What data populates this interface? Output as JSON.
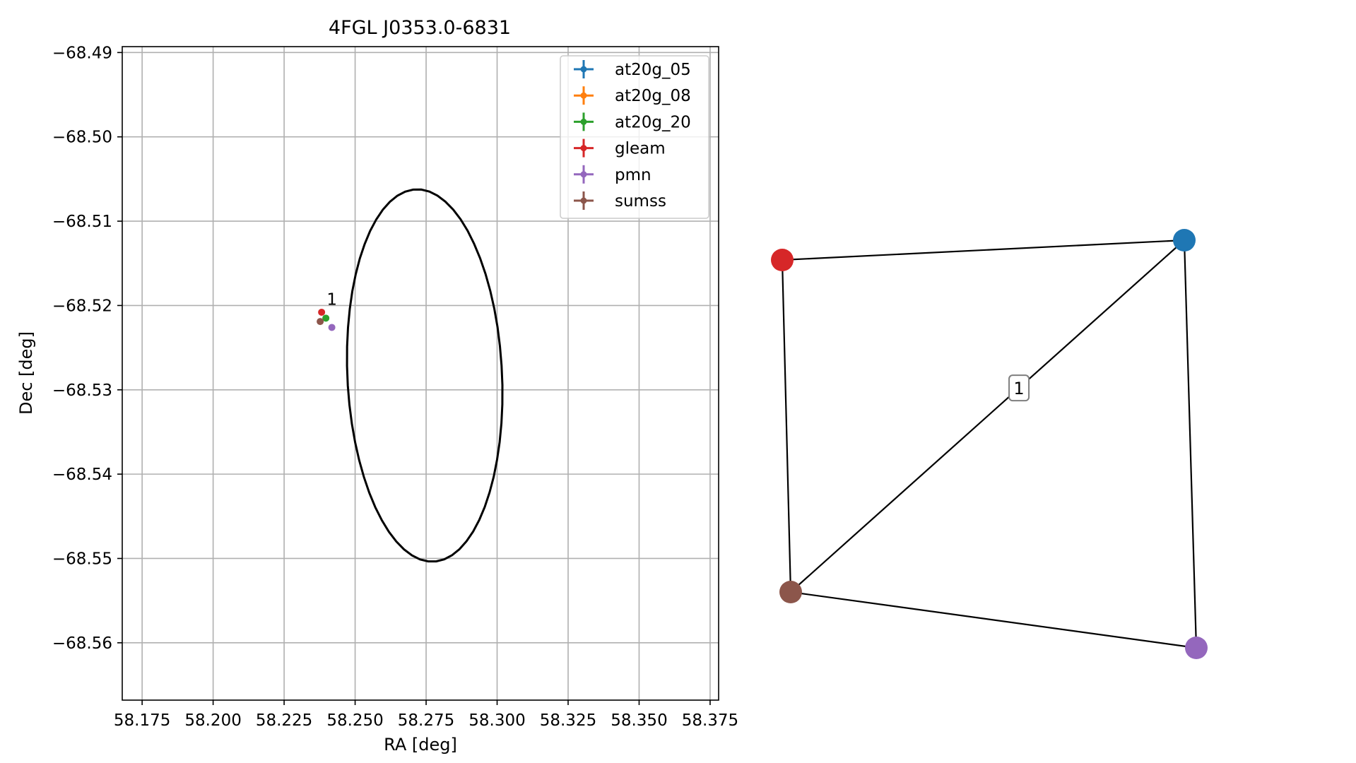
{
  "chart_data": [
    {
      "type": "scatter",
      "title": "4FGL J0353.0-6831",
      "xlabel": "RA [deg]",
      "ylabel": "Dec [deg]",
      "xlim": [
        58.168,
        58.378
      ],
      "ylim": [
        -68.5668,
        -68.4893
      ],
      "xticks": [
        "58.175",
        "58.200",
        "58.225",
        "58.250",
        "58.275",
        "58.300",
        "58.325",
        "58.350",
        "58.375"
      ],
      "xtick_values": [
        58.175,
        58.2,
        58.225,
        58.25,
        58.275,
        58.3,
        58.325,
        58.35,
        58.375
      ],
      "yticks": [
        "−68.49",
        "−68.50",
        "−68.51",
        "−68.52",
        "−68.53",
        "−68.54",
        "−68.55",
        "−68.56"
      ],
      "ytick_values": [
        -68.49,
        -68.5,
        -68.51,
        -68.52,
        -68.53,
        -68.54,
        -68.55,
        -68.56
      ],
      "grid": true,
      "legend_position": "upper-right",
      "ellipse": {
        "center": [
          58.2745,
          -68.5283
        ],
        "semi_major": 0.0276,
        "semi_minor": 0.0218,
        "angle": -11.9,
        "color": "#000000"
      },
      "series": [
        {
          "name": "at20g_05",
          "color": "#1f77b4",
          "points": []
        },
        {
          "name": "at20g_08",
          "color": "#ff7f0e",
          "points": []
        },
        {
          "name": "at20g_20",
          "color": "#2ca02c",
          "points": [
            [
              58.2397,
              -68.5215
            ]
          ]
        },
        {
          "name": "gleam",
          "color": "#d62728",
          "points": [
            [
              58.2382,
              -68.5208
            ]
          ]
        },
        {
          "name": "pmn",
          "color": "#9467bd",
          "points": [
            [
              58.2418,
              -68.5226
            ]
          ]
        },
        {
          "name": "sumss",
          "color": "#8c564b",
          "points": [
            [
              58.2377,
              -68.5219
            ]
          ]
        }
      ],
      "annotations": [
        {
          "text": "1",
          "x": 58.24,
          "y": -68.52
        }
      ]
    },
    {
      "type": "network",
      "nodes": [
        {
          "id": "at20g_05",
          "color": "#1f77b4"
        },
        {
          "id": "gleam",
          "color": "#d62728"
        },
        {
          "id": "sumss",
          "color": "#8c564b"
        },
        {
          "id": "pmn",
          "color": "#9467bd"
        }
      ],
      "edges": [
        [
          "gleam",
          "at20g_05"
        ],
        [
          "gleam",
          "sumss"
        ],
        [
          "sumss",
          "at20g_05"
        ],
        [
          "at20g_05",
          "pmn"
        ],
        [
          "sumss",
          "pmn"
        ]
      ],
      "labels": [
        {
          "text": "1",
          "edge": [
            "sumss",
            "at20g_05"
          ]
        }
      ]
    }
  ]
}
